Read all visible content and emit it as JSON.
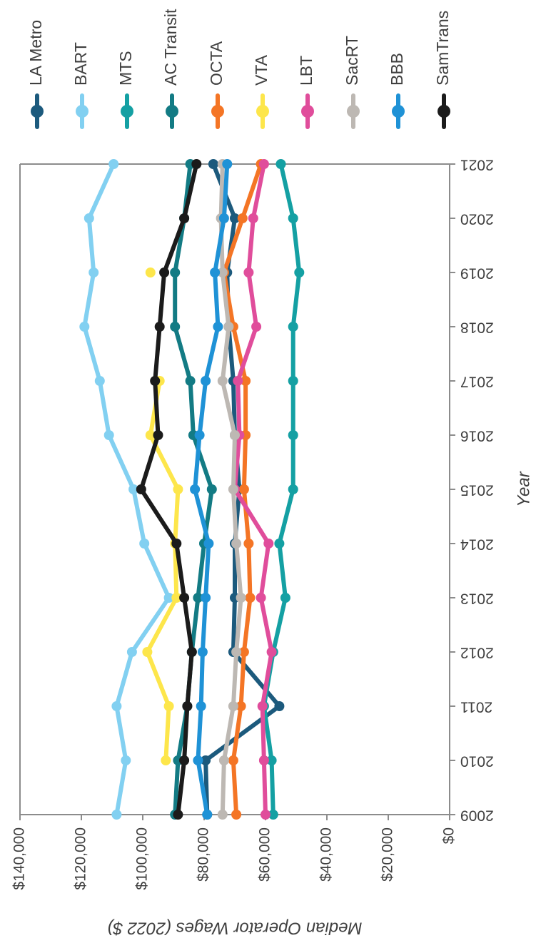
{
  "chart_data": {
    "type": "line",
    "xlabel": "Year",
    "ylabel": "Median Operator Wages (2022 $)",
    "x": [
      2009,
      2010,
      2011,
      2012,
      2013,
      2014,
      2015,
      2016,
      2017,
      2018,
      2019,
      2020,
      2021
    ],
    "ylim": [
      0,
      140000
    ],
    "yticks": [
      0,
      20000,
      40000,
      60000,
      80000,
      100000,
      120000,
      140000
    ],
    "ytick_labels": [
      "$0",
      "$20,000",
      "$40,000",
      "$60,000",
      "$80,000",
      "$100,000",
      "$120,000",
      "$140,000"
    ],
    "xtick_labels": [
      "2009",
      "2010",
      "2011",
      "2012",
      "2013",
      "2014",
      "2015",
      "2016",
      "2017",
      "2018",
      "2019",
      "2020",
      "2021"
    ],
    "grid": false,
    "legend_position": "right",
    "series": [
      {
        "name": "LA Metro",
        "color": "#1c5a7d",
        "values": [
          79000,
          79500,
          55500,
          70500,
          70000,
          70000,
          68500,
          70000,
          70500,
          72000,
          72500,
          70000,
          77000
        ]
      },
      {
        "name": "BART",
        "color": "#82d0f1",
        "values": [
          108500,
          105500,
          108500,
          103500,
          91500,
          99500,
          103000,
          111000,
          114000,
          119000,
          116000,
          117500,
          109500
        ]
      },
      {
        "name": "MTS",
        "color": "#14a0a3",
        "values": [
          57500,
          58000,
          60500,
          57500,
          53500,
          55500,
          51000,
          51000,
          51000,
          51000,
          49000,
          51000,
          55000
        ]
      },
      {
        "name": "AC Transit",
        "color": "#137b84",
        "values": [
          89500,
          88500,
          85500,
          84000,
          82000,
          80000,
          77500,
          83500,
          84500,
          89500,
          89500,
          86500,
          84500
        ]
      },
      {
        "name": "OCTA",
        "color": "#f47525",
        "values": [
          69500,
          70500,
          68000,
          67000,
          65000,
          65500,
          67000,
          66500,
          66500,
          70500,
          73500,
          67500,
          61500
        ]
      },
      {
        "name": "VTA",
        "color": "#fde64b",
        "values": [
          null,
          92500,
          91500,
          98500,
          89000,
          89500,
          88500,
          97500,
          94500,
          null,
          97500,
          null,
          null
        ]
      },
      {
        "name": "LBT",
        "color": "#e04d9b",
        "values": [
          60000,
          60500,
          61000,
          58000,
          61500,
          59000,
          70000,
          68500,
          69000,
          63000,
          65500,
          64000,
          60500
        ]
      },
      {
        "name": "SacRT",
        "color": "#bdb8b3",
        "values": [
          74000,
          73500,
          70500,
          69500,
          68000,
          69500,
          70500,
          70000,
          74000,
          72000,
          74000,
          74500,
          74000
        ]
      },
      {
        "name": "BBB",
        "color": "#1f92d6",
        "values": [
          79000,
          82000,
          81000,
          80500,
          79500,
          78500,
          83000,
          81500,
          79500,
          75500,
          76500,
          73500,
          72500
        ]
      },
      {
        "name": "SamTrans",
        "color": "#1b1b1b",
        "values": [
          88500,
          86500,
          85500,
          84000,
          86500,
          89000,
          100500,
          95000,
          96000,
          94500,
          93000,
          86500,
          82500
        ]
      }
    ]
  }
}
